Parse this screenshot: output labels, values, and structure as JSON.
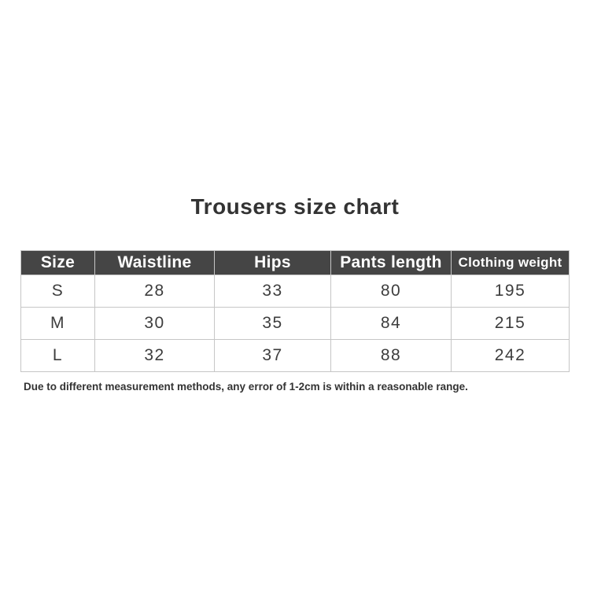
{
  "title": "Trousers size chart",
  "footnote": "Due to different measurement methods, any error of 1-2cm is within a reasonable range.",
  "colors": {
    "header_bg": "#454545",
    "header_text": "#ffffff",
    "body_text": "#3d3d3d",
    "grid_border": "#c6c6c6",
    "background": "#ffffff"
  },
  "chart_data": {
    "type": "table",
    "title": "Trousers size chart",
    "columns": [
      "Size",
      "Waistline",
      "Hips",
      "Pants length",
      "Clothing weight"
    ],
    "rows": [
      [
        "S",
        "28",
        "33",
        "80",
        "195"
      ],
      [
        "M",
        "30",
        "35",
        "84",
        "215"
      ],
      [
        "L",
        "32",
        "37",
        "88",
        "242"
      ]
    ]
  }
}
